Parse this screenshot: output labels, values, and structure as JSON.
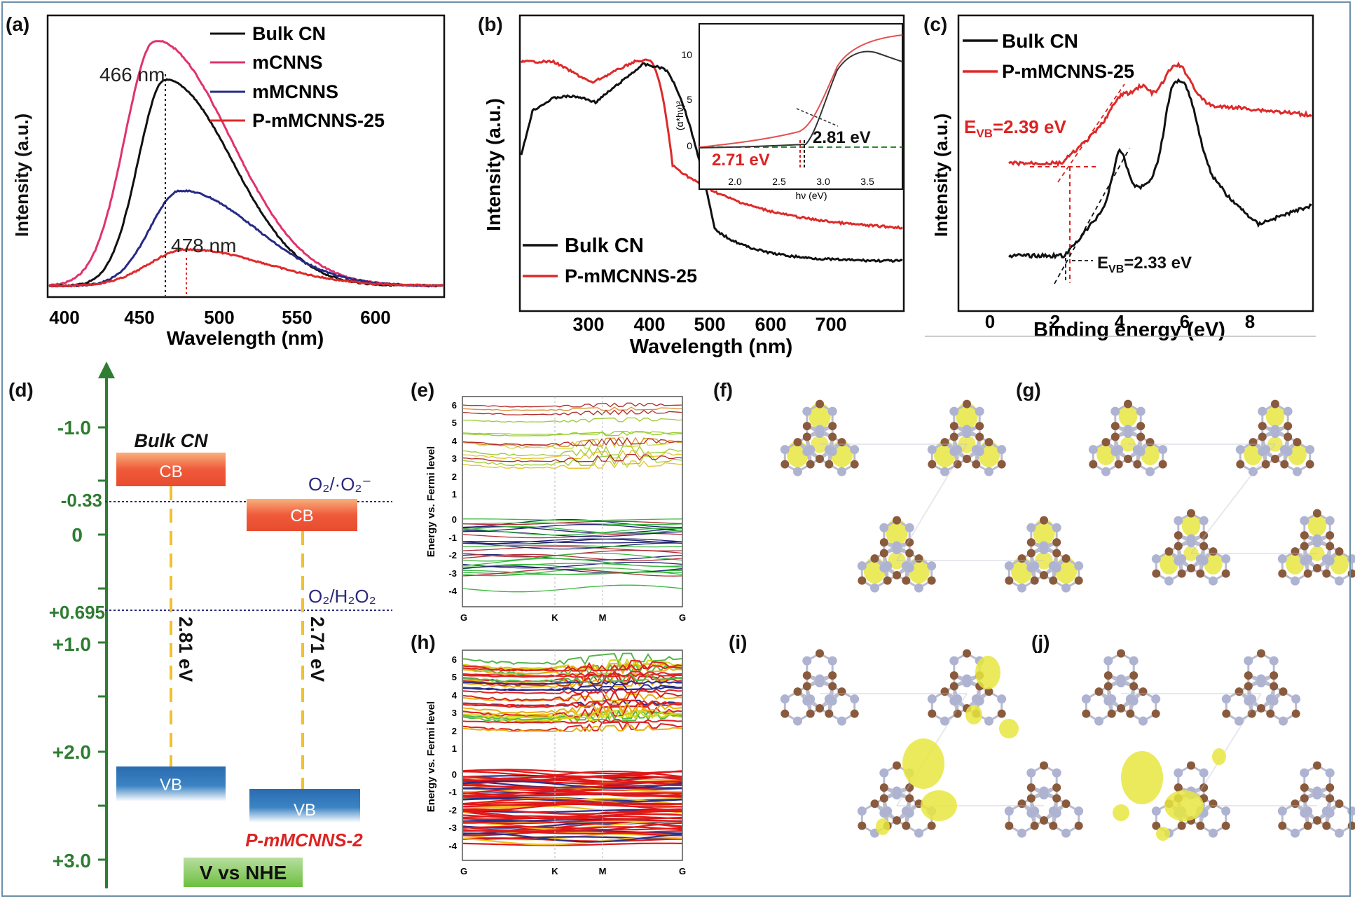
{
  "panels": {
    "a": {
      "label": "(a)",
      "ylabel": "Intensity (a.u.)",
      "xlabel": "Wavelength (nm)",
      "xticks": [
        "400",
        "450",
        "500",
        "550",
        "600"
      ],
      "annot_peak1": "466 nm",
      "annot_peak2": "478 nm",
      "legend": [
        "Bulk CN",
        "mCNNS",
        "mMCNNS",
        "P-mMCNNS-25"
      ]
    },
    "b": {
      "label": "(b)",
      "ylabel": "Intensity (a.u.)",
      "xlabel": "Wavelength (nm)",
      "xticks": [
        "300",
        "400",
        "500",
        "600",
        "700"
      ],
      "legend": [
        "Bulk CN",
        "P-mMCNNS-25"
      ],
      "inset": {
        "ylabel": "(α*hν)²",
        "xlabel": "hν (eV)",
        "xticks": [
          "2.0",
          "2.5",
          "3.0",
          "3.5"
        ],
        "yticks": [
          "0",
          "5",
          "10"
        ],
        "gap1": "2.81 eV",
        "gap2": "2.71 eV"
      }
    },
    "c": {
      "label": "(c)",
      "ylabel": "Intensity (a.u.)",
      "xlabel": "Binding energy (eV)",
      "xticks": [
        "0",
        "2",
        "4",
        "6",
        "8"
      ],
      "legend": [
        "Bulk CN",
        "P-mMCNNS-25"
      ],
      "evb1_main": "E",
      "evb1_sub": "VB",
      "evb1_val": "=2.39 eV",
      "evb2_main": "E",
      "evb2_sub": "VB",
      "evb2_val": "=2.33 eV"
    },
    "d": {
      "label": "(d)",
      "yticks": [
        "-1.0",
        "-0.33",
        "0",
        "+0.695",
        "+1.0",
        "+2.0",
        "+3.0"
      ],
      "bulk_title": "Bulk CN",
      "p_title": "P-mMCNNS-2",
      "cb": "CB",
      "vb": "VB",
      "gap1": "2.81 eV",
      "gap2": "2.71 eV",
      "redox1": "O₂/·O₂⁻",
      "redox2": "O₂/H₂O₂",
      "axis_title": "V vs NHE"
    },
    "e": {
      "label": "(e)",
      "ylabel": "Energy vs. Fermi level",
      "yticks": [
        "6",
        "5",
        "4",
        "3",
        "2",
        "1",
        "0",
        "-1",
        "-2",
        "-3",
        "-4"
      ],
      "kpoints": [
        "G",
        "K",
        "M",
        "G"
      ]
    },
    "h": {
      "label": "(h)",
      "ylabel": "Energy vs. Fermi level",
      "yticks": [
        "6",
        "5",
        "4",
        "3",
        "2",
        "1",
        "0",
        "-1",
        "-2",
        "-3",
        "-4"
      ],
      "kpoints": [
        "G",
        "K",
        "M",
        "G"
      ]
    },
    "f": {
      "label": "(f)"
    },
    "g": {
      "label": "(g)"
    },
    "i": {
      "label": "(i)"
    },
    "j": {
      "label": "(j)"
    }
  },
  "colors": {
    "black": "#111111",
    "pink": "#e0336b",
    "navy": "#262a86",
    "red": "#dd2a2a",
    "green_axis": "#2e7d32",
    "orbital": "#e8e640",
    "carbon": "#8a5a3c",
    "nitrogen": "#aeb3d2"
  }
}
